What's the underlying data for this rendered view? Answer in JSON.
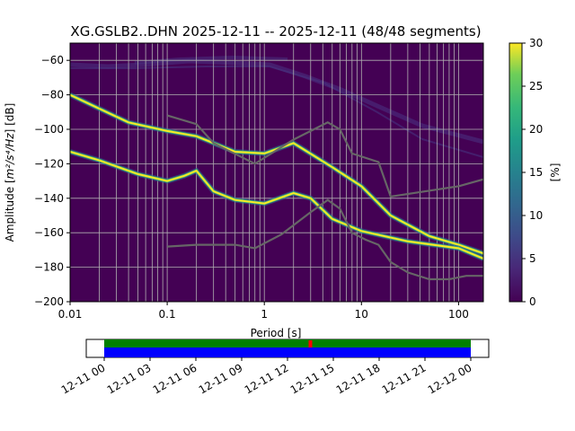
{
  "chart_data": [
    {
      "type": "heatmap",
      "title": "XG.GSLB2..DHN   2025-12-11 -- 2025-12-11  (48/48 segments)",
      "xlabel": "Period [s]",
      "ylabel_prefix": "Amplitude [",
      "ylabel_unit": "m²/s⁴/Hz",
      "ylabel_suffix": "] [dB]",
      "xscale": "log",
      "xlim": [
        0.01,
        180
      ],
      "ylim": [
        -200,
        -50
      ],
      "x_ticks": [
        {
          "value": 0.01,
          "label": "0.01"
        },
        {
          "value": 0.1,
          "label": "0.1"
        },
        {
          "value": 1,
          "label": "1"
        },
        {
          "value": 10,
          "label": "10"
        },
        {
          "value": 100,
          "label": "100"
        }
      ],
      "y_ticks": [
        {
          "value": -60,
          "label": "−60"
        },
        {
          "value": -80,
          "label": "−80"
        },
        {
          "value": -100,
          "label": "−100"
        },
        {
          "value": -120,
          "label": "−120"
        },
        {
          "value": -140,
          "label": "−140"
        },
        {
          "value": -160,
          "label": "−160"
        },
        {
          "value": -180,
          "label": "−180"
        },
        {
          "value": -200,
          "label": "−200"
        }
      ],
      "grid": true,
      "colorbar": {
        "label": "[%]",
        "range": [
          0,
          30
        ],
        "ticks": [
          {
            "value": 0,
            "label": "0"
          },
          {
            "value": 5,
            "label": "5"
          },
          {
            "value": 10,
            "label": "10"
          },
          {
            "value": 15,
            "label": "15"
          },
          {
            "value": 20,
            "label": "20"
          },
          {
            "value": 25,
            "label": "25"
          },
          {
            "value": 30,
            "label": "30"
          }
        ]
      },
      "psd_bands": [
        {
          "name": "upper band",
          "color": "#fde725",
          "points": [
            [
              0.01,
              -80
            ],
            [
              0.02,
              -88
            ],
            [
              0.04,
              -96
            ],
            [
              0.1,
              -101
            ],
            [
              0.2,
              -104
            ],
            [
              0.5,
              -113
            ],
            [
              1,
              -114
            ],
            [
              2,
              -108
            ],
            [
              5,
              -122
            ],
            [
              10,
              -133
            ],
            [
              20,
              -150
            ],
            [
              50,
              -162
            ],
            [
              100,
              -167
            ],
            [
              180,
              -172
            ]
          ]
        },
        {
          "name": "lower band",
          "color": "#fde725",
          "points": [
            [
              0.01,
              -113
            ],
            [
              0.02,
              -118
            ],
            [
              0.05,
              -126
            ],
            [
              0.1,
              -130
            ],
            [
              0.15,
              -127
            ],
            [
              0.2,
              -124
            ],
            [
              0.3,
              -136
            ],
            [
              0.5,
              -141
            ],
            [
              1,
              -143
            ],
            [
              2,
              -137
            ],
            [
              3,
              -140
            ],
            [
              5,
              -152
            ],
            [
              10,
              -159
            ],
            [
              30,
              -165
            ],
            [
              100,
              -169
            ],
            [
              180,
              -175
            ]
          ]
        }
      ],
      "reference_curves": [
        {
          "name": "high noise model",
          "color": "#666666",
          "points": [
            [
              0.1,
              -92
            ],
            [
              0.2,
              -97
            ],
            [
              0.3,
              -108
            ],
            [
              0.8,
              -120
            ],
            [
              2,
              -106
            ],
            [
              4.5,
              -96
            ],
            [
              6,
              -100
            ],
            [
              8,
              -114
            ],
            [
              15,
              -119
            ],
            [
              20,
              -139
            ],
            [
              100,
              -133
            ],
            [
              180,
              -129
            ]
          ]
        },
        {
          "name": "low noise model",
          "color": "#666666",
          "points": [
            [
              0.1,
              -168
            ],
            [
              0.2,
              -167
            ],
            [
              0.5,
              -167
            ],
            [
              0.8,
              -169
            ],
            [
              1.5,
              -161
            ],
            [
              3,
              -148
            ],
            [
              4.5,
              -141
            ],
            [
              6,
              -146
            ],
            [
              8,
              -160
            ],
            [
              11,
              -164
            ],
            [
              15,
              -167
            ],
            [
              20,
              -177
            ],
            [
              30,
              -183
            ],
            [
              50,
              -187
            ],
            [
              80,
              -187
            ],
            [
              120,
              -185
            ],
            [
              180,
              -185
            ]
          ]
        }
      ]
    },
    {
      "type": "timeline",
      "x_ticks": [
        "12-11 00",
        "12-11 03",
        "12-11 06",
        "12-11 09",
        "12-11 12",
        "12-11 15",
        "12-11 18",
        "12-11 21",
        "12-12 00"
      ],
      "data_availability_color": "#008000",
      "psd_segments_color": "#0000ff",
      "gap_marker_color": "#ff0000",
      "gap_marker_hour": 13.5
    }
  ]
}
